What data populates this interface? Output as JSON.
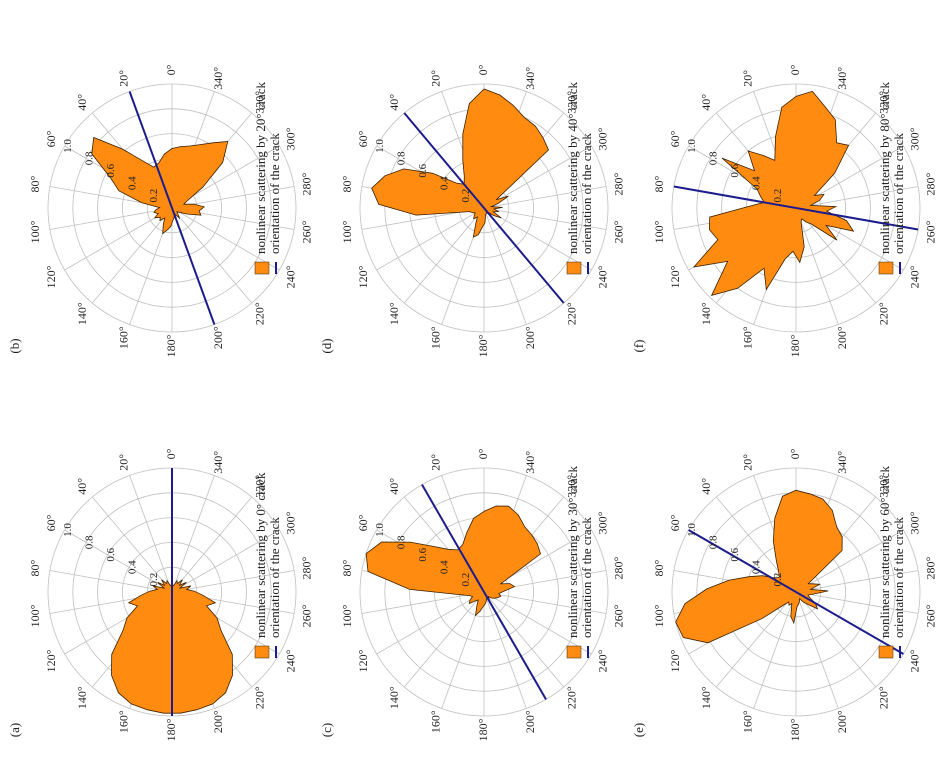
{
  "colors": {
    "fill": "#ff8c10",
    "line": "#1c1c8c",
    "grid": "#bfbfbf",
    "text": "#222222"
  },
  "polar_axis": {
    "angle_labels": [
      "0",
      "20",
      "40",
      "60",
      "80",
      "100",
      "120",
      "140",
      "160",
      "180",
      "200",
      "220",
      "240",
      "260",
      "280",
      "300",
      "320",
      "340"
    ],
    "degree_symbol": "°",
    "radial_labels": [
      "0.2",
      "0.4",
      "0.6",
      "0.8",
      "1.0"
    ],
    "rmax": 1.0
  },
  "chart_data": [
    {
      "type": "polar-area",
      "label": "(a)",
      "legend": [
        "nonlinear scattering by 0° crack",
        "orientation of the crack"
      ],
      "crack_orientation_deg": 0,
      "series": [
        {
          "name": "nonlinear scattering by 0° crack",
          "theta": [
            0,
            8,
            16,
            24,
            32,
            40,
            48,
            56,
            64,
            72,
            80,
            88,
            96,
            104,
            112,
            120,
            128,
            136,
            144,
            152,
            160,
            168,
            176,
            184,
            192,
            200,
            208,
            216,
            224,
            232,
            240,
            248,
            256,
            264,
            272,
            280,
            288,
            296,
            304,
            312,
            320,
            328,
            336,
            344,
            352
          ],
          "r": [
            0.08,
            0.05,
            0.06,
            0.1,
            0.08,
            0.13,
            0.08,
            0.14,
            0.07,
            0.16,
            0.12,
            0.18,
            0.25,
            0.36,
            0.3,
            0.42,
            0.5,
            0.7,
            0.83,
            0.92,
            0.96,
            0.97,
            0.98,
            0.98,
            0.97,
            0.96,
            0.92,
            0.83,
            0.7,
            0.5,
            0.42,
            0.3,
            0.36,
            0.25,
            0.18,
            0.12,
            0.16,
            0.07,
            0.14,
            0.08,
            0.13,
            0.08,
            0.1,
            0.06,
            0.05
          ]
        }
      ]
    },
    {
      "type": "polar-area",
      "label": "(b)",
      "legend": [
        "nonlinear scattering by 20° crack",
        "orientation of the crack"
      ],
      "crack_orientation_deg": 20,
      "series": [
        {
          "name": "nonlinear scattering by 20° crack",
          "theta": [
            0,
            8,
            16,
            24,
            32,
            40,
            48,
            56,
            64,
            72,
            80,
            88,
            96,
            104,
            112,
            120,
            128,
            136,
            144,
            152,
            160,
            168,
            176,
            184,
            192,
            200,
            208,
            216,
            224,
            232,
            240,
            248,
            256,
            264,
            272,
            280,
            288,
            296,
            304,
            312,
            320,
            328,
            336,
            344,
            352
          ],
          "r": [
            0.48,
            0.44,
            0.38,
            0.36,
            0.45,
            0.62,
            0.85,
            0.78,
            0.55,
            0.45,
            0.25,
            0.1,
            0.13,
            0.15,
            0.12,
            0.16,
            0.12,
            0.14,
            0.1,
            0.15,
            0.22,
            0.18,
            0.15,
            0.1,
            0.08,
            0.05,
            0.06,
            0.1,
            0.07,
            0.05,
            0.07,
            0.13,
            0.24,
            0.22,
            0.26,
            0.18,
            0.1,
            0.14,
            0.3,
            0.55,
            0.7,
            0.62,
            0.56,
            0.52,
            0.5
          ]
        }
      ]
    },
    {
      "type": "polar-area",
      "label": "(c)",
      "legend": [
        "nonlinear scattering by 30° crack",
        "orientation of the crack"
      ],
      "crack_orientation_deg": 30,
      "series": [
        {
          "name": "nonlinear scattering by 30° crack",
          "theta": [
            0,
            8,
            16,
            24,
            32,
            40,
            48,
            56,
            64,
            72,
            80,
            88,
            96,
            104,
            112,
            120,
            128,
            136,
            144,
            152,
            160,
            168,
            176,
            184,
            192,
            200,
            208,
            216,
            224,
            232,
            240,
            248,
            256,
            264,
            272,
            280,
            288,
            296,
            304,
            312,
            320,
            328,
            336,
            344,
            352
          ],
          "r": [
            0.65,
            0.6,
            0.5,
            0.42,
            0.4,
            0.45,
            0.55,
            0.72,
            0.92,
            1.0,
            0.95,
            0.6,
            0.2,
            0.12,
            0.1,
            0.13,
            0.15,
            0.1,
            0.08,
            0.12,
            0.2,
            0.16,
            0.12,
            0.1,
            0.08,
            0.06,
            0.05,
            0.07,
            0.05,
            0.08,
            0.1,
            0.12,
            0.14,
            0.12,
            0.16,
            0.25,
            0.22,
            0.15,
            0.55,
            0.58,
            0.6,
            0.62,
            0.68,
            0.72,
            0.7
          ]
        }
      ]
    },
    {
      "type": "polar-area",
      "label": "(d)",
      "legend": [
        "nonlinear scattering by 40° crack",
        "orientation of the crack"
      ],
      "crack_orientation_deg": 40,
      "series": [
        {
          "name": "nonlinear scattering by 40° crack",
          "theta": [
            0,
            8,
            16,
            24,
            32,
            40,
            48,
            56,
            64,
            72,
            80,
            88,
            96,
            104,
            112,
            120,
            128,
            136,
            144,
            152,
            160,
            168,
            176,
            184,
            192,
            200,
            208,
            216,
            224,
            232,
            240,
            248,
            256,
            264,
            272,
            280,
            288,
            296,
            304,
            312,
            320,
            328,
            336,
            344,
            352
          ],
          "r": [
            0.96,
            0.85,
            0.62,
            0.42,
            0.3,
            0.25,
            0.3,
            0.5,
            0.72,
            0.84,
            0.92,
            0.85,
            0.55,
            0.12,
            0.1,
            0.08,
            0.1,
            0.12,
            0.09,
            0.14,
            0.25,
            0.22,
            0.15,
            0.12,
            0.06,
            0.05,
            0.04,
            0.06,
            0.05,
            0.1,
            0.16,
            0.08,
            0.12,
            0.08,
            0.15,
            0.06,
            0.12,
            0.22,
            0.12,
            0.7,
            0.74,
            0.78,
            0.8,
            0.86,
            0.92
          ]
        }
      ]
    },
    {
      "type": "polar-area",
      "label": "(e)",
      "legend": [
        "nonlinear scattering by 60° crack",
        "orientation of the crack"
      ],
      "crack_orientation_deg": 60,
      "series": [
        {
          "name": "nonlinear scattering by 60° crack",
          "theta": [
            0,
            8,
            16,
            24,
            32,
            40,
            48,
            56,
            64,
            72,
            80,
            88,
            96,
            104,
            112,
            120,
            128,
            136,
            144,
            152,
            160,
            168,
            176,
            184,
            192,
            200,
            208,
            216,
            224,
            232,
            240,
            248,
            256,
            264,
            272,
            280,
            288,
            296,
            304,
            312,
            320,
            328,
            336,
            344,
            352
          ],
          "r": [
            0.82,
            0.78,
            0.62,
            0.45,
            0.3,
            0.22,
            0.18,
            0.2,
            0.3,
            0.4,
            0.55,
            0.72,
            0.9,
            1.0,
            0.98,
            0.82,
            0.35,
            0.15,
            0.1,
            0.12,
            0.1,
            0.2,
            0.25,
            0.12,
            0.1,
            0.08,
            0.06,
            0.1,
            0.14,
            0.22,
            0.18,
            0.12,
            0.1,
            0.15,
            0.26,
            0.12,
            0.2,
            0.15,
            0.12,
            0.5,
            0.58,
            0.62,
            0.72,
            0.78,
            0.8
          ]
        }
      ]
    },
    {
      "type": "polar-area",
      "label": "(f)",
      "legend": [
        "nonlinear scattering by 80° crack",
        "orientation of the crack"
      ],
      "crack_orientation_deg": 80,
      "series": [
        {
          "name": "nonlinear scattering by 80° crack",
          "theta": [
            0,
            8,
            16,
            24,
            32,
            40,
            48,
            56,
            64,
            72,
            80,
            88,
            96,
            104,
            112,
            120,
            128,
            136,
            144,
            152,
            160,
            168,
            176,
            184,
            192,
            200,
            208,
            216,
            224,
            232,
            240,
            248,
            256,
            264,
            272,
            280,
            288,
            296,
            304,
            312,
            320,
            328,
            336,
            344,
            352
          ],
          "r": [
            0.9,
            0.82,
            0.6,
            0.42,
            0.5,
            0.6,
            0.45,
            0.72,
            0.35,
            0.3,
            0.26,
            0.38,
            0.7,
            0.72,
            0.68,
            0.95,
            0.7,
            0.98,
            0.8,
            0.55,
            0.7,
            0.42,
            0.35,
            0.44,
            0.32,
            0.12,
            0.1,
            0.14,
            0.18,
            0.42,
            0.28,
            0.5,
            0.42,
            0.25,
            0.32,
            0.12,
            0.2,
            0.25,
            0.18,
            0.42,
            0.66,
            0.62,
            0.78,
            0.85,
            0.95
          ]
        }
      ]
    }
  ]
}
